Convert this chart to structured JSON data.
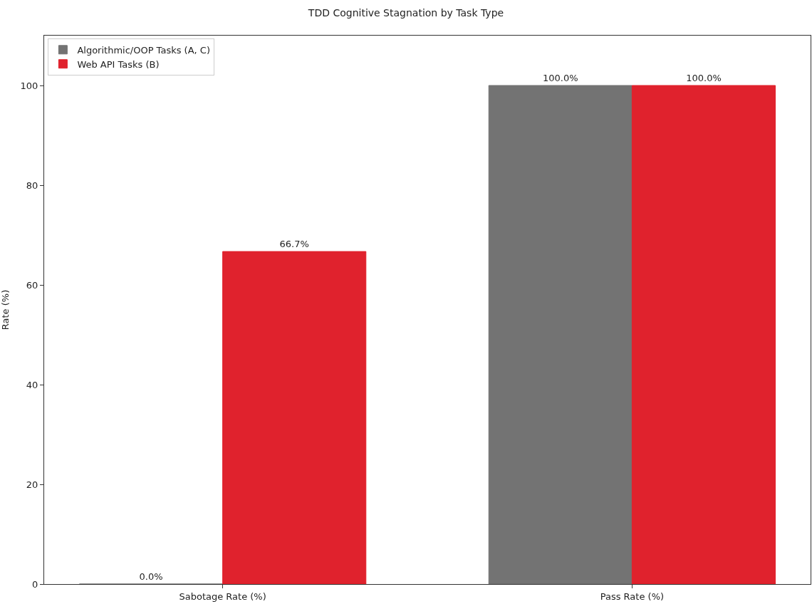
{
  "chart_data": {
    "type": "bar",
    "title": "TDD Cognitive Stagnation by Task Type",
    "ylabel": "Rate (%)",
    "categories": [
      "Sabotage Rate (%)",
      "Pass Rate (%)"
    ],
    "series": [
      {
        "name": "Algorithmic/OOP Tasks (A, C)",
        "color": "#737373",
        "values": [
          0.0,
          100.0
        ],
        "value_labels": [
          "0.0%",
          "100.0%"
        ]
      },
      {
        "name": "Web API Tasks (B)",
        "color": "#e0222d",
        "values": [
          66.7,
          100.0
        ],
        "value_labels": [
          "66.7%",
          "100.0%"
        ]
      }
    ],
    "ylim": [
      0,
      110
    ],
    "yticks": [
      0,
      20,
      40,
      60,
      80,
      100
    ],
    "legend": "top left"
  }
}
